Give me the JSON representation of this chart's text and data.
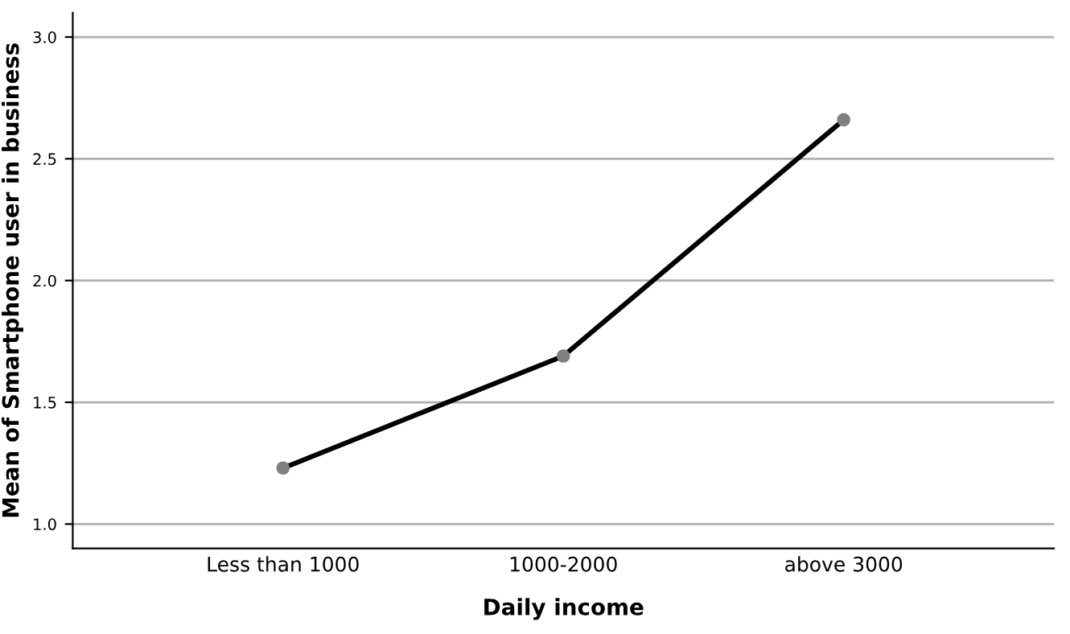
{
  "chart_data": {
    "type": "line",
    "xlabel": "Daily income",
    "ylabel": "Mean of Smartphone user in business",
    "categories": [
      "Less than 1000",
      "1000-2000",
      "above 3000"
    ],
    "series": [
      {
        "color": "#000000",
        "values": [
          1.23,
          1.69,
          2.66
        ]
      }
    ],
    "ylim": [
      0.9,
      3.1
    ],
    "yticks": [
      {
        "value": 1.0,
        "label": "1.0"
      },
      {
        "value": 1.5,
        "label": "1.5"
      },
      {
        "value": 2.0,
        "label": "2.0"
      },
      {
        "value": 2.5,
        "label": "2.5"
      },
      {
        "value": 3.0,
        "label": "3.0"
      }
    ],
    "grid": "y",
    "marker": "circle",
    "line_style": "solid"
  }
}
